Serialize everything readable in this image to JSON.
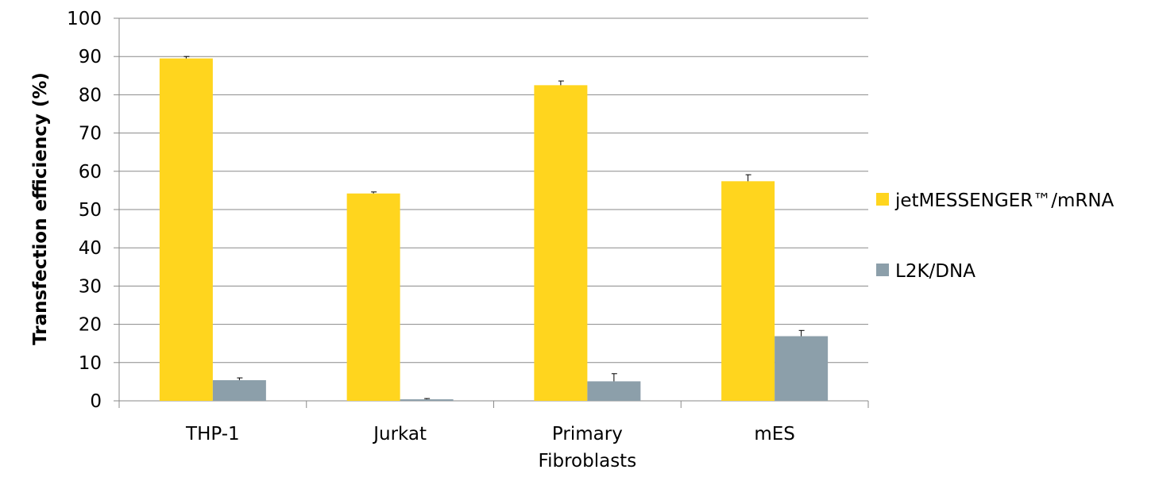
{
  "chart_data": {
    "type": "bar",
    "ylabel": "Transfection efficiency (%)",
    "xlabel": "",
    "ylim": [
      0,
      100
    ],
    "yticks": [
      "0",
      "10",
      "20",
      "30",
      "40",
      "50",
      "60",
      "70",
      "80",
      "90",
      "100"
    ],
    "categories": [
      [
        "THP-1"
      ],
      [
        "Jurkat"
      ],
      [
        "Primary",
        "Fibroblasts"
      ],
      [
        "mES"
      ]
    ],
    "series": [
      {
        "name": "jetMESSENGER™/mRNA",
        "color": "#FFD51E",
        "values": [
          89.5,
          54.2,
          82.5,
          57.4
        ],
        "errors": [
          0.5,
          0.4,
          1.1,
          1.7
        ]
      },
      {
        "name": "L2K/DNA",
        "color": "#8C9FAA",
        "values": [
          5.4,
          0.4,
          5.1,
          16.9
        ],
        "errors": [
          0.6,
          0.2,
          2.0,
          1.5
        ]
      }
    ],
    "grid": true,
    "legend": "right"
  }
}
